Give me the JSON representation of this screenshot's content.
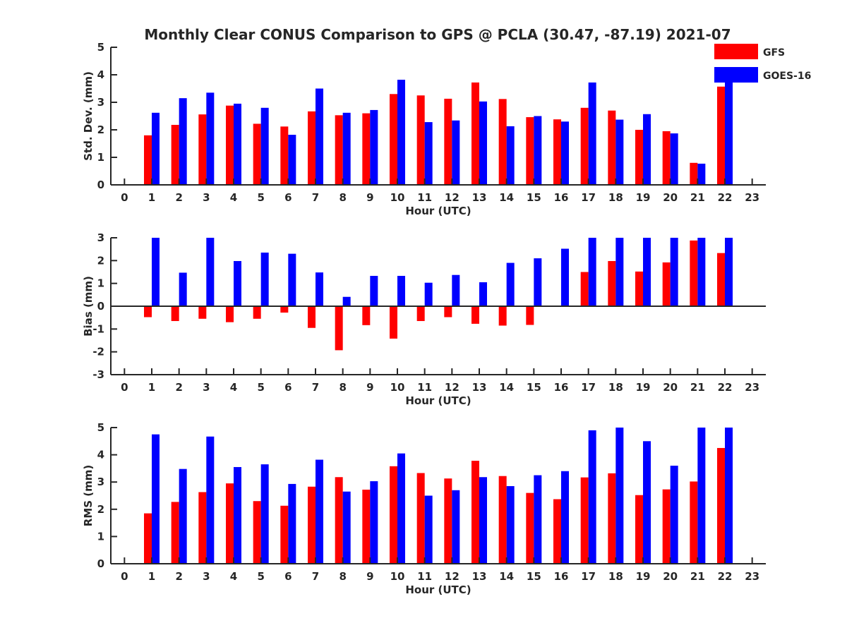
{
  "title": "Monthly Clear CONUS Comparison to GPS @ PCLA (30.47, -87.19) 2021-07",
  "legend": [
    {
      "name": "GFS",
      "color": "#ff0000"
    },
    {
      "name": "GOES-16",
      "color": "#0000ff"
    }
  ],
  "chart_data": [
    {
      "type": "bar",
      "ylabel": "Std. Dev. (mm)",
      "xlabel": "Hour (UTC)",
      "ylim": [
        0,
        5
      ],
      "yticks": [
        0,
        1,
        2,
        3,
        4,
        5
      ],
      "xlim": [
        -0.5,
        23.5
      ],
      "x": [
        1,
        2,
        3,
        4,
        5,
        6,
        7,
        8,
        9,
        10,
        11,
        12,
        13,
        14,
        15,
        16,
        17,
        18,
        19,
        20,
        21,
        22
      ],
      "series": [
        {
          "name": "GFS",
          "color": "#ff0000",
          "values": [
            1.8,
            2.18,
            2.56,
            2.88,
            2.22,
            2.12,
            2.67,
            2.53,
            2.6,
            3.3,
            3.25,
            3.13,
            3.72,
            3.12,
            2.46,
            2.38,
            2.8,
            2.7,
            2.0,
            1.95,
            0.8,
            3.57
          ]
        },
        {
          "name": "GOES-16",
          "color": "#0000ff",
          "values": [
            2.62,
            3.15,
            3.35,
            2.95,
            2.8,
            1.82,
            3.5,
            2.62,
            2.72,
            3.82,
            2.28,
            2.34,
            3.03,
            2.13,
            2.5,
            2.3,
            3.72,
            2.37,
            2.57,
            1.87,
            0.77,
            4.2
          ]
        }
      ]
    },
    {
      "type": "bar",
      "ylabel": "Bias (mm)",
      "xlabel": "Hour (UTC)",
      "ylim": [
        -3,
        3
      ],
      "yticks": [
        -3,
        -2,
        -1,
        0,
        1,
        2,
        3
      ],
      "xlim": [
        -0.5,
        23.5
      ],
      "x": [
        1,
        2,
        3,
        4,
        5,
        6,
        7,
        8,
        9,
        10,
        11,
        12,
        13,
        14,
        15,
        16,
        17,
        18,
        19,
        20,
        21,
        22
      ],
      "series": [
        {
          "name": "GFS",
          "color": "#ff0000",
          "values": [
            -0.48,
            -0.65,
            -0.55,
            -0.7,
            -0.55,
            -0.28,
            -0.95,
            -1.93,
            -0.83,
            -1.42,
            -0.65,
            -0.48,
            -0.77,
            -0.85,
            -0.82,
            0,
            1.5,
            1.98,
            1.52,
            1.92,
            2.88,
            2.33
          ]
        },
        {
          "name": "GOES-16",
          "color": "#0000ff",
          "values": [
            3.0,
            1.47,
            3.0,
            1.98,
            2.35,
            2.3,
            1.48,
            0.41,
            1.33,
            1.33,
            1.03,
            1.37,
            1.05,
            1.9,
            2.1,
            2.52,
            3.0,
            3.0,
            3.0,
            3.0,
            3.0,
            3.0
          ]
        }
      ]
    },
    {
      "type": "bar",
      "ylabel": "RMS (mm)",
      "xlabel": "Hour (UTC)",
      "ylim": [
        0,
        5
      ],
      "yticks": [
        0,
        1,
        2,
        3,
        4,
        5
      ],
      "xlim": [
        -0.5,
        23.5
      ],
      "x": [
        1,
        2,
        3,
        4,
        5,
        6,
        7,
        8,
        9,
        10,
        11,
        12,
        13,
        14,
        15,
        16,
        17,
        18,
        19,
        20,
        21,
        22
      ],
      "series": [
        {
          "name": "GFS",
          "color": "#ff0000",
          "values": [
            1.85,
            2.27,
            2.63,
            2.95,
            2.3,
            2.13,
            2.83,
            3.18,
            2.72,
            3.58,
            3.33,
            3.13,
            3.78,
            3.22,
            2.6,
            2.37,
            3.17,
            3.32,
            2.52,
            2.73,
            3.02,
            4.25
          ]
        },
        {
          "name": "GOES-16",
          "color": "#0000ff",
          "values": [
            4.75,
            3.48,
            4.67,
            3.55,
            3.65,
            2.93,
            3.82,
            2.65,
            3.03,
            4.05,
            2.5,
            2.7,
            3.18,
            2.85,
            3.25,
            3.4,
            4.9,
            5.0,
            4.5,
            3.6,
            5.0,
            5.0
          ]
        }
      ]
    }
  ]
}
